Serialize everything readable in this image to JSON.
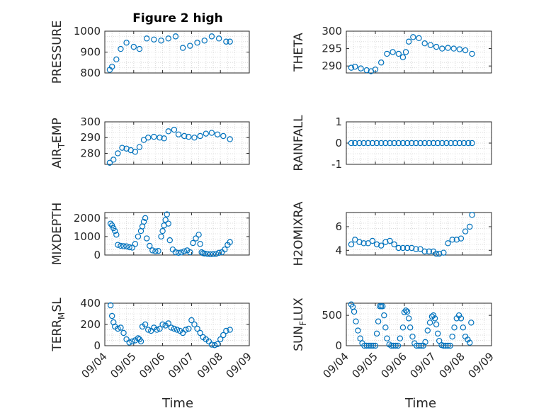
{
  "figure": {
    "title": "Figure 2 high",
    "xlabel": "Time"
  },
  "colors": {
    "marker": "#0072BD",
    "axis": "#262626",
    "grid": "#dcdcdc"
  },
  "chart_data": [
    {
      "type": "scatter",
      "ylabel": "PRESSURE",
      "x_dates": [
        "09/04",
        "09/05",
        "09/06",
        "09/07",
        "09/08",
        "09/09"
      ],
      "ylim": [
        800,
        1000
      ],
      "yticks": [
        "800",
        "900",
        "1000"
      ],
      "ytick_values": [
        800,
        900,
        1000
      ],
      "show_xticks": false,
      "x": [
        4.17,
        4.25,
        4.4,
        4.55,
        4.75,
        5.0,
        5.2,
        5.45,
        5.7,
        5.95,
        6.2,
        6.45,
        6.7,
        6.95,
        7.2,
        7.45,
        7.7,
        7.95,
        8.2,
        8.33
      ],
      "y": [
        815,
        830,
        865,
        915,
        945,
        925,
        915,
        965,
        960,
        955,
        965,
        975,
        920,
        930,
        945,
        955,
        975,
        965,
        950,
        950
      ]
    },
    {
      "type": "scatter",
      "ylabel": "THETA",
      "x_dates": [
        "09/04",
        "09/05",
        "09/06",
        "09/07",
        "09/08",
        "09/09"
      ],
      "ylim": [
        288,
        300
      ],
      "yticks": [
        "290",
        "295",
        "300"
      ],
      "ytick_values": [
        290,
        295,
        300
      ],
      "show_xticks": false,
      "x": [
        4.17,
        4.3,
        4.5,
        4.7,
        4.85,
        5.0,
        5.2,
        5.4,
        5.6,
        5.8,
        5.95,
        6.05,
        6.15,
        6.3,
        6.5,
        6.7,
        6.9,
        7.1,
        7.3,
        7.5,
        7.7,
        7.9,
        8.1,
        8.33
      ],
      "y": [
        289.5,
        289.8,
        289.3,
        288.8,
        288.5,
        289,
        291,
        293.5,
        294,
        293.5,
        292.5,
        294,
        297,
        298.3,
        298,
        296.5,
        296,
        295.5,
        295,
        295.2,
        295,
        294.8,
        294.5,
        293.5
      ]
    },
    {
      "type": "scatter",
      "ylabel": "AIR_TEMP",
      "ylabel_main": "AIR",
      "ylabel_sub": "T",
      "ylabel_rest": "EMP",
      "x_dates": [
        "09/04",
        "09/05",
        "09/06",
        "09/07",
        "09/08",
        "09/09"
      ],
      "ylim": [
        273,
        300
      ],
      "yticks": [
        "280",
        "290",
        "300"
      ],
      "ytick_values": [
        280,
        290,
        300
      ],
      "show_xticks": false,
      "x": [
        4.17,
        4.3,
        4.45,
        4.6,
        4.75,
        4.9,
        5.05,
        5.2,
        5.35,
        5.5,
        5.7,
        5.9,
        6.05,
        6.2,
        6.4,
        6.55,
        6.75,
        6.9,
        7.1,
        7.3,
        7.5,
        7.7,
        7.9,
        8.1,
        8.33
      ],
      "y": [
        274,
        276,
        280,
        283.5,
        283,
        282,
        281,
        284,
        288.5,
        290,
        290.5,
        290,
        289.5,
        294,
        295,
        292,
        291,
        290.5,
        290,
        291,
        292.5,
        293,
        292,
        291,
        289
      ]
    },
    {
      "type": "scatter",
      "ylabel": "RAINFALL",
      "x_dates": [
        "09/04",
        "09/05",
        "09/06",
        "09/07",
        "09/08",
        "09/09"
      ],
      "ylim": [
        -1,
        1
      ],
      "yticks": [
        "-1",
        "0",
        "1"
      ],
      "ytick_values": [
        -1,
        0,
        1
      ],
      "show_xticks": false,
      "x": [
        4.17,
        4.3,
        4.45,
        4.6,
        4.75,
        4.9,
        5.05,
        5.2,
        5.35,
        5.5,
        5.65,
        5.8,
        5.95,
        6.1,
        6.25,
        6.4,
        6.55,
        6.7,
        6.85,
        7.0,
        7.15,
        7.3,
        7.45,
        7.6,
        7.75,
        7.9,
        8.05,
        8.2,
        8.33
      ],
      "y": [
        0,
        0,
        0,
        0,
        0,
        0,
        0,
        0,
        0,
        0,
        0,
        0,
        0,
        0,
        0,
        0,
        0,
        0,
        0,
        0,
        0,
        0,
        0,
        0,
        0,
        0,
        0,
        0,
        0
      ]
    },
    {
      "type": "scatter",
      "ylabel": "MIXDEPTH",
      "x_dates": [
        "09/04",
        "09/05",
        "09/06",
        "09/07",
        "09/08",
        "09/09"
      ],
      "ylim": [
        0,
        2300
      ],
      "yticks": [
        "0",
        "1000",
        "2000"
      ],
      "ytick_values": [
        0,
        1000,
        2000
      ],
      "show_xticks": false,
      "x": [
        4.2,
        4.25,
        4.3,
        4.35,
        4.4,
        4.45,
        4.55,
        4.65,
        4.75,
        4.85,
        4.95,
        5.05,
        5.15,
        5.25,
        5.3,
        5.35,
        5.4,
        5.45,
        5.55,
        5.65,
        5.75,
        5.85,
        5.95,
        6.0,
        6.05,
        6.1,
        6.15,
        6.2,
        6.25,
        6.35,
        6.45,
        6.55,
        6.65,
        6.75,
        6.85,
        6.95,
        7.05,
        7.15,
        7.25,
        7.3,
        7.35,
        7.4,
        7.45,
        7.55,
        7.65,
        7.75,
        7.85,
        7.95,
        8.05,
        8.15,
        8.25,
        8.33
      ],
      "y": [
        1700,
        1600,
        1450,
        1300,
        1100,
        550,
        500,
        480,
        470,
        420,
        400,
        600,
        1000,
        1300,
        1550,
        1800,
        2000,
        900,
        500,
        250,
        200,
        220,
        1000,
        1300,
        1600,
        1900,
        2200,
        1700,
        800,
        300,
        150,
        120,
        140,
        200,
        250,
        150,
        650,
        900,
        1100,
        600,
        150,
        100,
        80,
        60,
        40,
        50,
        60,
        120,
        150,
        300,
        550,
        700
      ]
    },
    {
      "type": "scatter",
      "ylabel": "H2OMIXRA",
      "x_dates": [
        "09/04",
        "09/05",
        "09/06",
        "09/07",
        "09/08",
        "09/09"
      ],
      "ylim": [
        3.6,
        7.2
      ],
      "yticks": [
        "4",
        "6"
      ],
      "ytick_values": [
        4,
        6
      ],
      "show_xticks": false,
      "x": [
        4.17,
        4.3,
        4.45,
        4.6,
        4.75,
        4.9,
        5.05,
        5.2,
        5.35,
        5.5,
        5.65,
        5.8,
        5.95,
        6.1,
        6.25,
        6.4,
        6.55,
        6.7,
        6.85,
        7.0,
        7.1,
        7.2,
        7.35,
        7.5,
        7.65,
        7.8,
        7.95,
        8.1,
        8.25,
        8.33
      ],
      "y": [
        4.5,
        4.9,
        4.7,
        4.6,
        4.6,
        4.8,
        4.5,
        4.4,
        4.7,
        4.8,
        4.5,
        4.2,
        4.2,
        4.2,
        4.2,
        4.1,
        4.1,
        3.9,
        3.9,
        3.9,
        3.7,
        3.7,
        3.8,
        4.6,
        4.9,
        4.9,
        5.0,
        5.6,
        6.0,
        7.0
      ]
    },
    {
      "type": "scatter",
      "ylabel": "TERR_MSL",
      "ylabel_main": "TERR",
      "ylabel_sub": "M",
      "ylabel_rest": "SL",
      "x_dates": [
        "09/04",
        "09/05",
        "09/06",
        "09/07",
        "09/08",
        "09/09"
      ],
      "ylim": [
        0,
        400
      ],
      "yticks": [
        "0",
        "200",
        "400"
      ],
      "ytick_values": [
        0,
        200,
        400
      ],
      "show_xticks": true,
      "x": [
        4.2,
        4.25,
        4.3,
        4.35,
        4.45,
        4.55,
        4.65,
        4.75,
        4.85,
        4.95,
        5.05,
        5.15,
        5.2,
        5.25,
        5.3,
        5.4,
        5.5,
        5.6,
        5.7,
        5.8,
        5.9,
        6.0,
        6.1,
        6.2,
        6.3,
        6.4,
        6.5,
        6.6,
        6.7,
        6.8,
        6.9,
        7.0,
        7.1,
        7.2,
        7.3,
        7.4,
        7.5,
        7.6,
        7.7,
        7.8,
        7.9,
        8.0,
        8.1,
        8.2,
        8.33
      ],
      "y": [
        380,
        280,
        220,
        180,
        160,
        170,
        120,
        60,
        30,
        40,
        50,
        70,
        60,
        40,
        180,
        200,
        150,
        140,
        170,
        150,
        160,
        200,
        190,
        210,
        170,
        160,
        150,
        140,
        120,
        150,
        160,
        240,
        200,
        160,
        120,
        80,
        60,
        40,
        10,
        5,
        15,
        60,
        100,
        140,
        150
      ]
    },
    {
      "type": "scatter",
      "ylabel": "SUN_FLUX",
      "ylabel_main": "SUN",
      "ylabel_sub": "F",
      "ylabel_rest": "LUX",
      "x_dates": [
        "09/04",
        "09/05",
        "09/06",
        "09/07",
        "09/08",
        "09/09"
      ],
      "ylim": [
        0,
        700
      ],
      "yticks": [
        "0",
        "500"
      ],
      "ytick_values": [
        0,
        500
      ],
      "show_xticks": true,
      "x": [
        4.17,
        4.22,
        4.27,
        4.33,
        4.4,
        4.48,
        4.55,
        4.62,
        4.7,
        4.78,
        4.85,
        4.92,
        5.0,
        5.05,
        5.1,
        5.15,
        5.2,
        5.25,
        5.3,
        5.35,
        5.4,
        5.48,
        5.55,
        5.62,
        5.7,
        5.78,
        5.85,
        5.95,
        6.0,
        6.05,
        6.1,
        6.15,
        6.2,
        6.28,
        6.35,
        6.42,
        6.5,
        6.58,
        6.65,
        6.72,
        6.8,
        6.88,
        6.95,
        7.0,
        7.05,
        7.1,
        7.15,
        7.2,
        7.28,
        7.35,
        7.42,
        7.5,
        7.58,
        7.65,
        7.72,
        7.8,
        7.88,
        7.95,
        8.02,
        8.1,
        8.18,
        8.25,
        8.3
      ],
      "y": [
        680,
        640,
        560,
        400,
        250,
        120,
        40,
        0,
        0,
        0,
        0,
        0,
        0,
        200,
        400,
        650,
        650,
        650,
        500,
        300,
        120,
        20,
        0,
        0,
        0,
        0,
        120,
        300,
        550,
        580,
        560,
        450,
        300,
        150,
        40,
        0,
        0,
        0,
        0,
        60,
        250,
        380,
        480,
        500,
        450,
        350,
        200,
        80,
        10,
        0,
        0,
        0,
        0,
        150,
        300,
        450,
        500,
        450,
        300,
        150,
        100,
        50,
        380
      ]
    }
  ]
}
